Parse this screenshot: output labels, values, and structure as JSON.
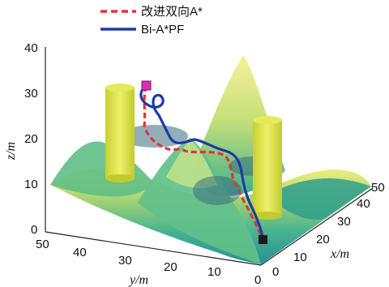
{
  "chart_data": {
    "type": "3d-surface-paths",
    "legend": [
      {
        "label": "改进双向A*",
        "color": "#e8303a",
        "style": "dashed"
      },
      {
        "label": "Bi-A*PF",
        "color": "#1f3aa6",
        "style": "solid"
      }
    ],
    "axes": {
      "x": {
        "label": "x/m",
        "range": [
          0,
          50
        ],
        "ticks": [
          "0",
          "10",
          "20",
          "30",
          "40",
          "50"
        ]
      },
      "y": {
        "label": "y/m",
        "range": [
          0,
          50
        ],
        "ticks": [
          "0",
          "10",
          "20",
          "30",
          "40",
          "50"
        ]
      },
      "z": {
        "label": "z/m",
        "range": [
          0,
          40
        ],
        "ticks": [
          "0",
          "10",
          "20",
          "30",
          "40"
        ]
      }
    },
    "start_marker": {
      "color": "#d62fb4",
      "shape": "square"
    },
    "goal_marker": {
      "color": "#1a1a1a",
      "shape": "square"
    },
    "surface_colors": [
      "#1a8a8c",
      "#3fb08a",
      "#a7d46a",
      "#f2ee7a"
    ],
    "obstacle_color": "#d8df3e"
  }
}
